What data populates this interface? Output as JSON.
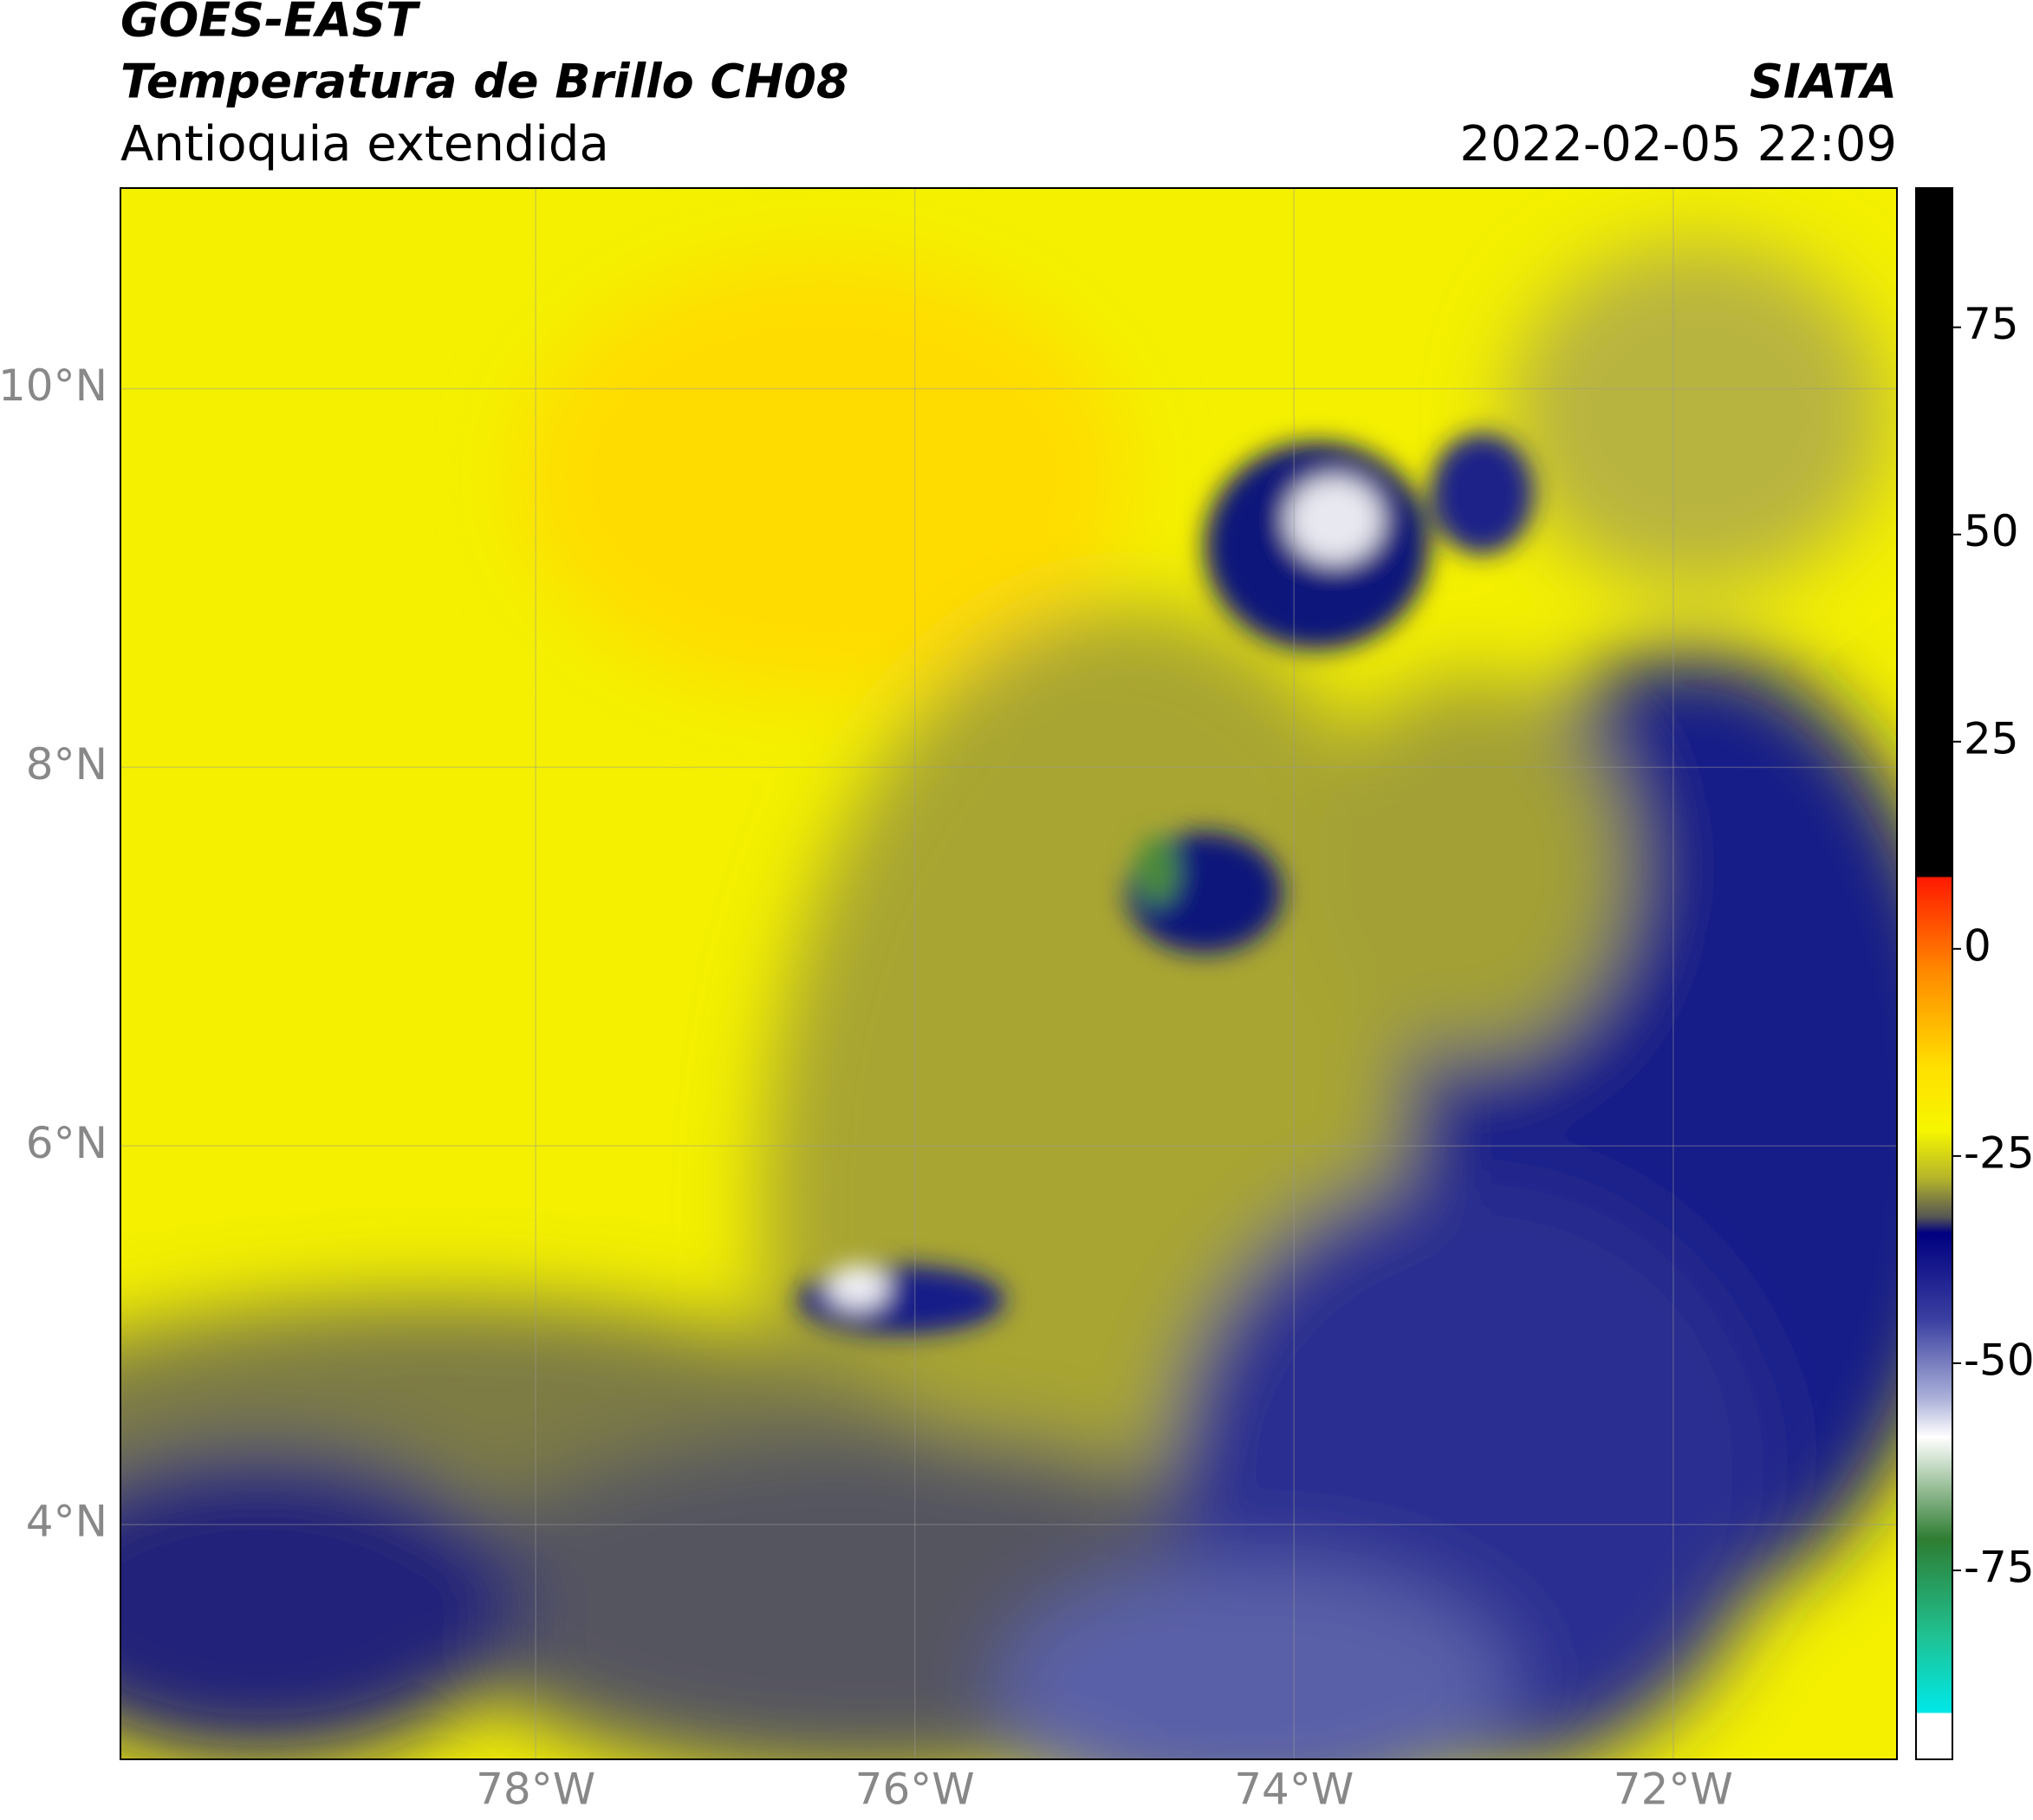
{
  "chart_data": {
    "type": "map",
    "title": "GOES-EAST",
    "subtitle": "Temperatura de Brillo CH08",
    "region": "Antioquia extendida",
    "source": "SIATA",
    "timestamp": "2022-02-05 22:09",
    "xlim": [
      -80.19,
      -70.82
    ],
    "ylim": [
      2.76,
      11.06
    ],
    "xticks": [
      {
        "value": -78,
        "label": "78°W"
      },
      {
        "value": -76,
        "label": "76°W"
      },
      {
        "value": -74,
        "label": "74°W"
      },
      {
        "value": -72,
        "label": "72°W"
      }
    ],
    "yticks": [
      {
        "value": 4,
        "label": "4°N"
      },
      {
        "value": 6,
        "label": "6°N"
      },
      {
        "value": 8,
        "label": "8°N"
      },
      {
        "value": 10,
        "label": "10°N"
      }
    ],
    "grid": true,
    "colorbar": {
      "lim": [
        -97.8,
        91.8
      ],
      "ticks": [
        -75,
        -50,
        -25,
        0,
        25,
        50,
        75
      ]
    }
  }
}
